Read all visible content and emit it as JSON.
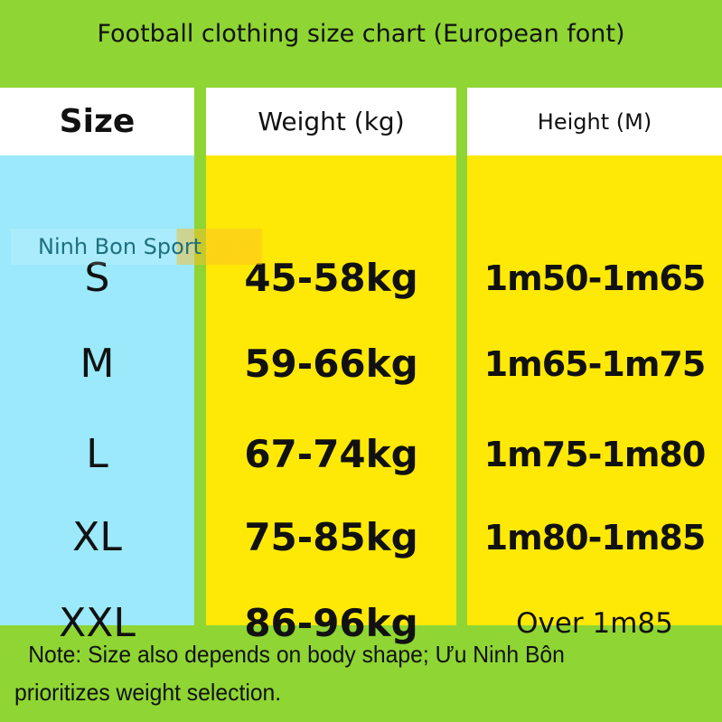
{
  "title": "Football clothing size chart (European font)",
  "headers": [
    "Size",
    "Weight (kg)",
    "Height (M)"
  ],
  "rows": [
    {
      "size": "S",
      "weight": "45-58kg",
      "height": "1m50-1m65"
    },
    {
      "size": "M",
      "weight": "59-66kg",
      "height": "1m65-1m75"
    },
    {
      "size": "L",
      "weight": "67-74kg",
      "height": "1m75-1m80"
    },
    {
      "size": "XL",
      "weight": "75-85kg",
      "height": "1m80-1m85"
    },
    {
      "size": "XXL",
      "weight": "86-96kg",
      "height": "Over 1m85"
    }
  ],
  "watermark": "Ninh Bon Sport",
  "note": {
    "line1": "Note: Size also depends on body shape; Ưu Ninh Bôn",
    "line2": "prioritizes weight selection."
  },
  "colors": {
    "background": "#8fd533",
    "size_column": "#9be9fb",
    "value_columns": "#fde905",
    "header": "#ffffff"
  }
}
